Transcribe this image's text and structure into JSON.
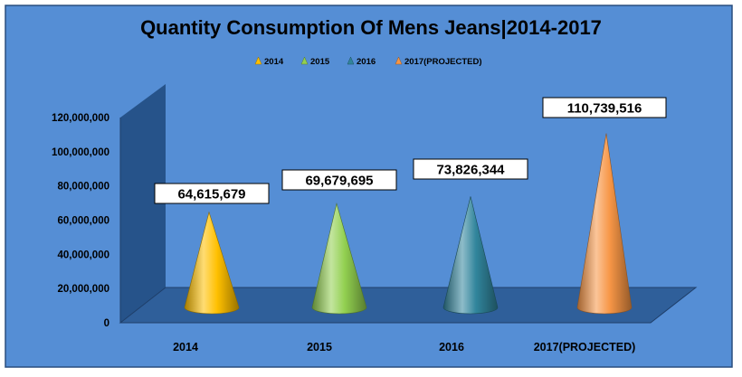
{
  "chart_data": {
    "type": "bar",
    "bar_shape": "cone",
    "title": "Quantity Consumption Of Mens Jeans|2014-2017",
    "categories": [
      "2014",
      "2015",
      "2016",
      "2017(PROJECTED)"
    ],
    "values": [
      64615679,
      69679695,
      73826344,
      110739516
    ],
    "data_labels": [
      "64,615,679",
      "69,679,695",
      "73,826,344",
      "110,739,516"
    ],
    "legend": {
      "position": "top",
      "entries": [
        {
          "label": "2014",
          "color": "#ffc000"
        },
        {
          "label": "2015",
          "color": "#92d050"
        },
        {
          "label": "2016",
          "color": "#31859c"
        },
        {
          "label": "2017(PROJECTED)",
          "color": "#f79646"
        }
      ]
    },
    "y_ticks": [
      "0",
      "20,000,000",
      "40,000,000",
      "60,000,000",
      "80,000,000",
      "100,000,000",
      "120,000,000"
    ],
    "ylim": [
      0,
      120000000
    ],
    "grid": false,
    "colors": {
      "background": "#558ed5",
      "wall": "#1f497d",
      "floor": "#2f5f9a",
      "frame": "#2a4e7e"
    }
  }
}
